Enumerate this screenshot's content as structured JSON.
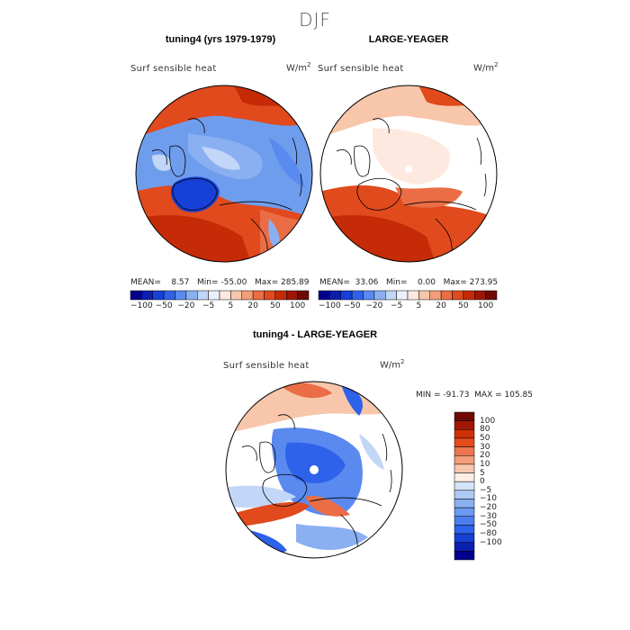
{
  "season": "DJF",
  "panels": [
    {
      "title": "tuning4 (yrs 1979-1979)",
      "field": "Surf sensible heat",
      "units_base": "W/m",
      "units_exp": "2",
      "stats": {
        "mean_label": "MEAN=",
        "mean": "8.57",
        "min_label": "Min=",
        "min": "-55.00",
        "max_label": "Max=",
        "max": "285.89"
      }
    },
    {
      "title": "LARGE-YEAGER",
      "field": "Surf sensible heat",
      "units_base": "W/m",
      "units_exp": "2",
      "stats": {
        "mean_label": "MEAN=",
        "mean": "33.06",
        "min_label": "Min=",
        "min": "0.00",
        "max_label": "Max=",
        "max": "273.95"
      }
    },
    {
      "title": "tuning4 - LARGE-YEAGER",
      "field": "Surf sensible heat",
      "units_base": "W/m",
      "units_exp": "2",
      "stats_text": "MIN = -91.73  MAX = 105.85"
    }
  ],
  "colorbar_horizontal": {
    "colors": [
      "#00008b",
      "#0a1fb0",
      "#1640d6",
      "#2e62ea",
      "#5a8af0",
      "#8ab0f2",
      "#c2d6f7",
      "#eaf1fb",
      "#fde9df",
      "#f8c6ab",
      "#f39e78",
      "#ea6d45",
      "#e04a1d",
      "#c52b06",
      "#9e1704",
      "#6e0a02"
    ],
    "labels": [
      "-100",
      "-50",
      "-20",
      "-5",
      "5",
      "20",
      "50",
      "100"
    ]
  },
  "colorbar_vertical": {
    "colors": [
      "#00008b",
      "#0a1fb0",
      "#1640d6",
      "#2e62ea",
      "#4c7ded",
      "#6b98f0",
      "#8ab0f2",
      "#b0c8f5",
      "#d6e4f9",
      "#fdeee6",
      "#f8c6ab",
      "#f39e78",
      "#ec7650",
      "#e64b1c",
      "#cf2f07",
      "#a11704",
      "#6e0a02"
    ],
    "labels": [
      "100",
      "80",
      "50",
      "30",
      "20",
      "10",
      "5",
      "0",
      "-5",
      "-10",
      "-20",
      "-30",
      "-50",
      "-80",
      "-100"
    ]
  }
}
